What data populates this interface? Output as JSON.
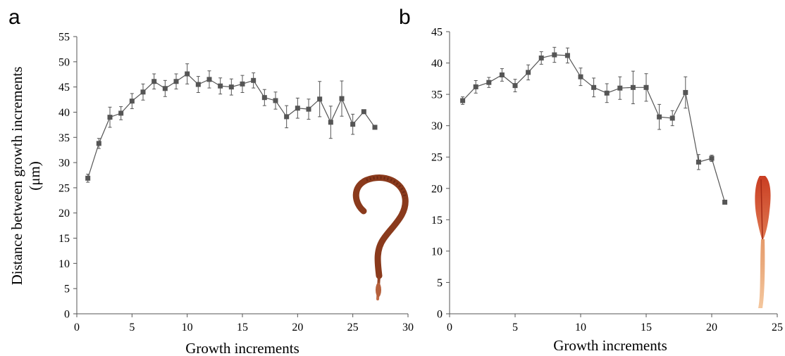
{
  "chart_data": [
    {
      "type": "line",
      "panel_label": "a",
      "title": "",
      "xlabel": "Growth increments",
      "ylabel_line1": "Distance between growth increments",
      "ylabel_line2": "(μm)",
      "xlim": [
        0,
        30
      ],
      "ylim": [
        0,
        55
      ],
      "xticks": [
        0,
        5,
        10,
        15,
        20,
        25,
        30
      ],
      "yticks": [
        0,
        5,
        10,
        15,
        20,
        25,
        30,
        35,
        40,
        45,
        50,
        55
      ],
      "grid": false,
      "legend": "none",
      "marker": "square",
      "color": "#555555",
      "inset_image": "curled-feather-specimen",
      "series": [
        {
          "x": [
            1,
            2,
            3,
            4,
            5,
            6,
            7,
            8,
            9,
            10,
            11,
            12,
            13,
            14,
            15,
            16,
            17,
            18,
            19,
            20,
            21,
            22,
            23,
            24,
            25,
            26,
            27
          ],
          "values": [
            26.9,
            33.8,
            39.0,
            39.8,
            42.2,
            44.0,
            46.1,
            44.7,
            46.1,
            47.6,
            45.5,
            46.5,
            45.2,
            45.0,
            45.6,
            46.3,
            42.9,
            42.3,
            39.1,
            40.8,
            40.6,
            42.6,
            38.0,
            42.7,
            37.6,
            40.1,
            37.0
          ],
          "error": [
            0.8,
            1.0,
            2.0,
            1.3,
            1.5,
            1.6,
            1.5,
            1.6,
            1.5,
            2.0,
            1.6,
            1.7,
            1.6,
            1.6,
            1.7,
            1.5,
            1.6,
            1.7,
            2.2,
            2.0,
            2.0,
            3.5,
            3.2,
            3.5,
            2.0,
            0.3,
            0.2
          ]
        }
      ]
    },
    {
      "type": "line",
      "panel_label": "b",
      "title": "",
      "xlabel": "Growth increments",
      "ylabel": "",
      "xlim": [
        0,
        25
      ],
      "ylim": [
        0,
        45
      ],
      "xticks": [
        0,
        5,
        10,
        15,
        20,
        25
      ],
      "yticks": [
        0,
        5,
        10,
        15,
        20,
        25,
        30,
        35,
        40,
        45
      ],
      "grid": false,
      "legend": "none",
      "marker": "square",
      "color": "#555555",
      "inset_image": "straight-red-feather-specimen",
      "series": [
        {
          "x": [
            1,
            2,
            3,
            4,
            5,
            6,
            7,
            8,
            9,
            10,
            11,
            12,
            13,
            14,
            15,
            16,
            17,
            18,
            19,
            20,
            21
          ],
          "values": [
            34.0,
            36.2,
            36.9,
            38.1,
            36.4,
            38.5,
            40.8,
            41.3,
            41.2,
            37.8,
            36.1,
            35.2,
            36.0,
            36.1,
            36.1,
            31.4,
            31.2,
            35.3,
            24.2,
            24.8,
            17.8
          ],
          "error": [
            0.6,
            1.0,
            0.8,
            1.0,
            1.0,
            1.2,
            1.0,
            1.2,
            1.2,
            1.4,
            1.5,
            1.5,
            1.8,
            2.6,
            2.2,
            2.0,
            1.2,
            2.5,
            1.2,
            0.5,
            0.2
          ]
        }
      ]
    }
  ]
}
